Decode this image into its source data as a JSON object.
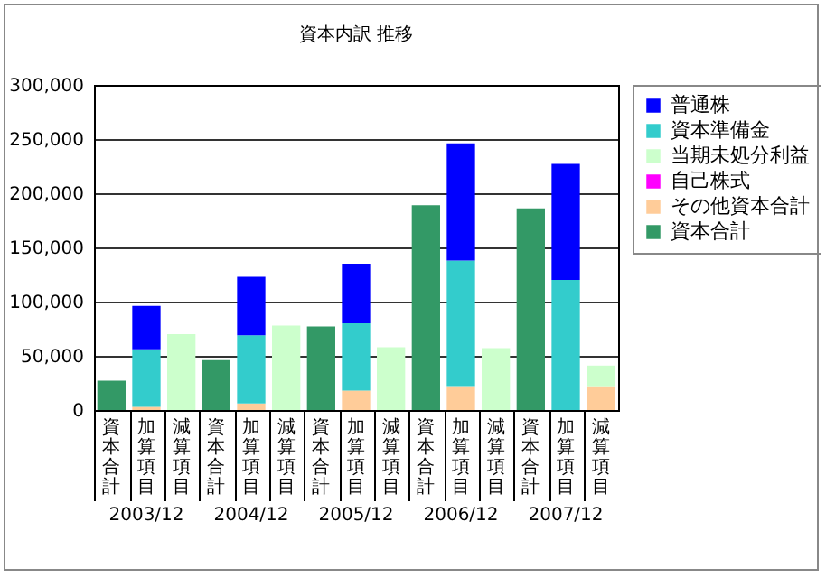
{
  "chart_data": {
    "type": "bar",
    "title": "資本内訳 推移",
    "stacked": true,
    "categories": [
      "資本合計",
      "加算項目",
      "減算項目",
      "資本合計",
      "加算項目",
      "減算項目",
      "資本合計",
      "加算項目",
      "減算項目",
      "資本合計",
      "加算項目",
      "減算項目",
      "資本合計",
      "加算項目",
      "減算項目"
    ],
    "annotations": [
      "2003/12",
      "2004/12",
      "2005/12",
      "2006/12",
      "2007/12"
    ],
    "series": [
      {
        "name": "資本合計",
        "color": "#339966",
        "values": [
          27000,
          null,
          null,
          46000,
          null,
          null,
          77000,
          null,
          null,
          189000,
          null,
          null,
          186000,
          null,
          null
        ]
      },
      {
        "name": "その他資本合計",
        "color": "#ffcc99",
        "values": [
          null,
          3000,
          null,
          null,
          6000,
          null,
          null,
          18000,
          null,
          null,
          22000,
          null,
          null,
          null,
          22000
        ]
      },
      {
        "name": "自己株式",
        "color": "#ff00ff",
        "values": [
          null,
          null,
          null,
          null,
          null,
          null,
          null,
          null,
          null,
          null,
          null,
          null,
          null,
          null,
          null
        ]
      },
      {
        "name": "当期未処分利益",
        "color": "#ccffcc",
        "values": [
          null,
          null,
          70000,
          null,
          null,
          78000,
          null,
          null,
          58000,
          null,
          null,
          57000,
          null,
          null,
          19000
        ]
      },
      {
        "name": "資本準備金",
        "color": "#33cccc",
        "values": [
          null,
          53000,
          null,
          null,
          63000,
          null,
          null,
          62000,
          null,
          null,
          116000,
          null,
          null,
          120000,
          null
        ]
      },
      {
        "name": "普通株",
        "color": "#0000ff",
        "values": [
          null,
          40000,
          null,
          null,
          54000,
          null,
          null,
          55000,
          null,
          null,
          108000,
          null,
          null,
          107000,
          null
        ]
      }
    ],
    "ylim": [
      0,
      300000
    ],
    "yticks": [
      {
        "value": 0,
        "label": "0"
      },
      {
        "value": 50000,
        "label": "50,000"
      },
      {
        "value": 100000,
        "label": "100,000"
      },
      {
        "value": 150000,
        "label": "150,000"
      },
      {
        "value": 200000,
        "label": "200,000"
      },
      {
        "value": 250000,
        "label": "250,000"
      },
      {
        "value": 300000,
        "label": "300,000"
      }
    ],
    "grid": "y",
    "legend": "right"
  }
}
